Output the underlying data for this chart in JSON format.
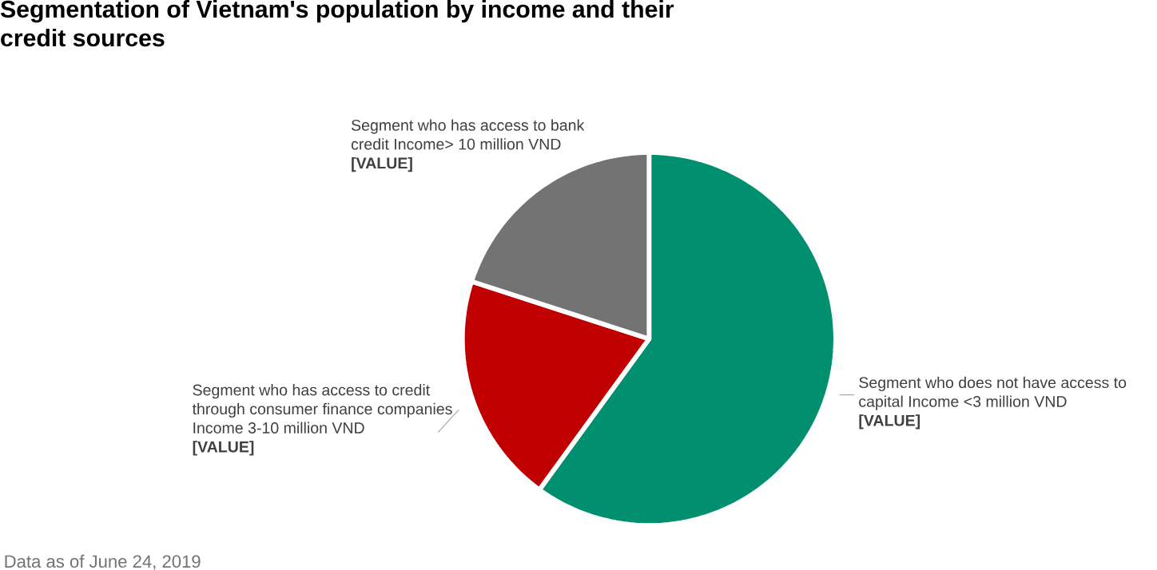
{
  "chart_data": {
    "type": "pie",
    "title": "Segmentation of Vietnam's population by income and their credit sources",
    "categories": [
      "Segment who does not have access to capital Income <3 million VND",
      "Segment who has access to credit through consumer finance companies Income 3-10 million VND",
      "Segment who has access to bank credit Income> 10 million VND"
    ],
    "values": [
      60,
      20,
      20
    ],
    "colors": [
      "#00906f",
      "#c00000",
      "#737373"
    ],
    "value_labels": [
      "[VALUE]",
      "[VALUE]",
      "[VALUE]"
    ],
    "annotations": [
      "Data as of June 24, 2019"
    ]
  }
}
